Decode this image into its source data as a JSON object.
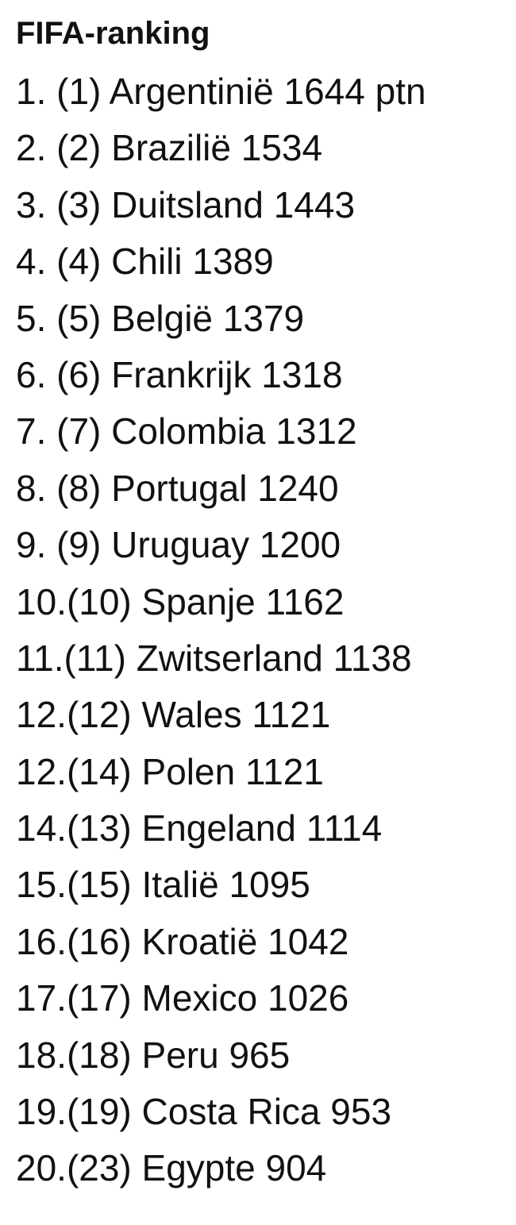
{
  "title": "FIFA-ranking",
  "items": [
    "1. (1) Argentinië 1644 ptn",
    "2. (2) Brazilië 1534",
    "3. (3) Duitsland 1443",
    "4. (4) Chili 1389",
    "5. (5) België 1379",
    "6. (6) Frankrijk 1318",
    "7. (7) Colombia 1312",
    "8. (8) Portugal 1240",
    "9. (9) Uruguay 1200",
    "10.(10) Spanje 1162",
    "11.(11) Zwitserland 1138",
    "12.(12) Wales 1121",
    "12.(14) Polen 1121",
    "14.(13) Engeland 1114",
    "15.(15) Italië 1095",
    "16.(16) Kroatië 1042",
    "17.(17) Mexico 1026",
    "18.(18) Peru 965",
    "19.(19) Costa Rica 953",
    "20.(23) Egypte 904"
  ]
}
